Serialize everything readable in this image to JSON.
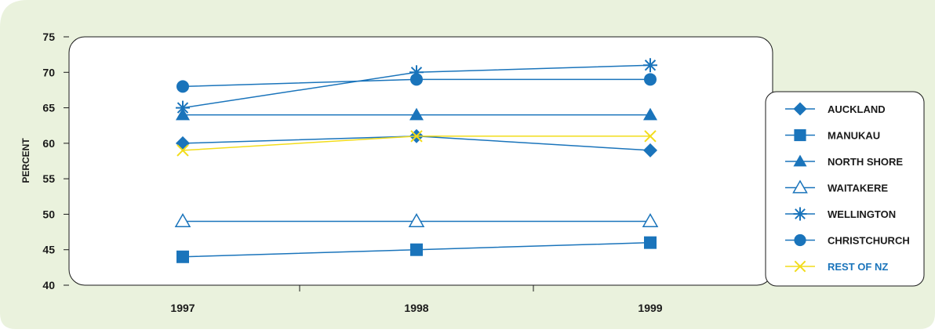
{
  "colors": {
    "panel_bg": "#eaf2dd",
    "line_blue": "#1a74bb",
    "line_yellow": "#f2dc1b",
    "text_dark": "#1a1a1a",
    "legend_highlight": "#1a74bb"
  },
  "chart_data": {
    "type": "line",
    "title": "",
    "xlabel": "",
    "ylabel": "PERCENT",
    "x": [
      "1997",
      "1998",
      "1999"
    ],
    "ylim": [
      40,
      75
    ],
    "yticks": [
      40,
      45,
      50,
      55,
      60,
      65,
      70,
      75
    ],
    "grid": false,
    "legend_position": "right",
    "series": [
      {
        "name": "AUCKLAND",
        "values": [
          60,
          61,
          59
        ],
        "marker": "diamond",
        "color": "#1a74bb"
      },
      {
        "name": "MANUKAU",
        "values": [
          44,
          45,
          46
        ],
        "marker": "square",
        "color": "#1a74bb"
      },
      {
        "name": "NORTH SHORE",
        "values": [
          64,
          64,
          64
        ],
        "marker": "triangle",
        "color": "#1a74bb"
      },
      {
        "name": "WAITAKERE",
        "values": [
          49,
          49,
          49
        ],
        "marker": "triangle-open",
        "color": "#1a74bb"
      },
      {
        "name": "WELLINGTON",
        "values": [
          65,
          70,
          71
        ],
        "marker": "asterisk",
        "color": "#1a74bb"
      },
      {
        "name": "CHRISTCHURCH",
        "values": [
          68,
          69,
          69
        ],
        "marker": "circle",
        "color": "#1a74bb"
      },
      {
        "name": "REST OF NZ",
        "values": [
          59,
          61,
          61
        ],
        "marker": "x",
        "color": "#f2dc1b",
        "label_color": "#1a74bb"
      }
    ]
  }
}
